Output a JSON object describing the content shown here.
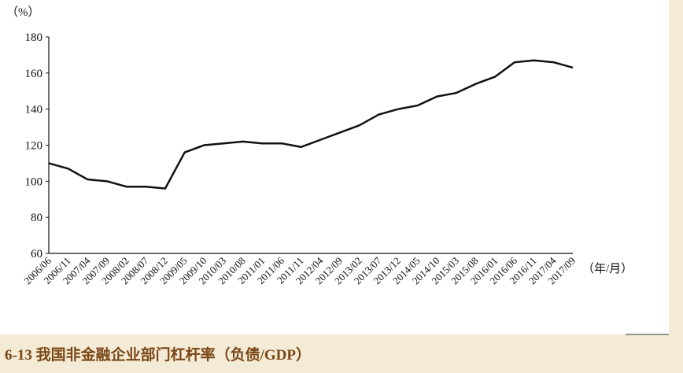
{
  "chart_data": {
    "type": "line",
    "y_unit_label": "（%）",
    "x_unit_label": "（年/月）",
    "caption": "6-13 我国非金融企业部门杠杆率（负债/GDP）",
    "categories": [
      "2006/06",
      "2006/11",
      "2007/04",
      "2007/09",
      "2008/02",
      "2008/07",
      "2008/12",
      "2009/05",
      "2009/10",
      "2010/03",
      "2010/08",
      "2011/01",
      "2011/06",
      "2011/11",
      "2012/04",
      "2012/09",
      "2013/02",
      "2013/07",
      "2013/12",
      "2014/05",
      "2014/10",
      "2015/03",
      "2015/08",
      "2016/01",
      "2016/06",
      "2016/11",
      "2017/04",
      "2017/09"
    ],
    "values": [
      110,
      107,
      101,
      100,
      97,
      97,
      96,
      116,
      120,
      121,
      122,
      121,
      121,
      119,
      123,
      127,
      131,
      137,
      140,
      142,
      147,
      149,
      154,
      158,
      166,
      167,
      166,
      163
    ],
    "color": "#111111",
    "ylim": [
      60,
      180
    ],
    "yticks": [
      60,
      80,
      100,
      120,
      140,
      160,
      180
    ],
    "grid": false
  }
}
